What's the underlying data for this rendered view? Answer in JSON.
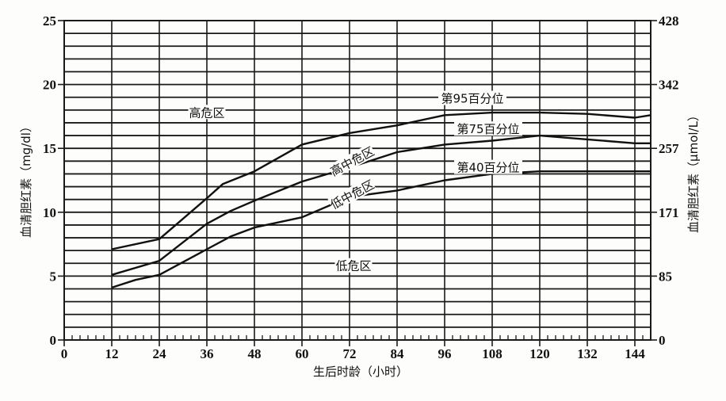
{
  "chart_data": {
    "type": "line",
    "title": "",
    "xlabel": "生后时龄（小时）",
    "ylabel": "血清胆红素（mg/dl）",
    "ylabel_right": "血清胆红素（μmol/L）",
    "xlim": [
      0,
      148
    ],
    "ylim": [
      0,
      25
    ],
    "x_ticks": [
      0,
      12,
      24,
      36,
      48,
      60,
      72,
      84,
      96,
      108,
      120,
      132,
      144
    ],
    "y_ticks": [
      0,
      5,
      10,
      15,
      20,
      25
    ],
    "y_ticks_right": [
      {
        "at": 0,
        "label": "0"
      },
      {
        "at": 5,
        "label": "85"
      },
      {
        "at": 10,
        "label": "171"
      },
      {
        "at": 15,
        "label": "257"
      },
      {
        "at": 20,
        "label": "342"
      },
      {
        "at": 25,
        "label": "428"
      }
    ],
    "grid": {
      "horizontal_step": 1,
      "vertical_step": 12,
      "minor_x_ticks_step": 2
    },
    "series": [
      {
        "name": "第95百分位",
        "x": [
          12,
          24,
          36,
          40,
          48,
          60,
          72,
          84,
          96,
          108,
          120,
          132,
          144,
          148
        ],
        "values": [
          7.1,
          7.9,
          11.1,
          12.2,
          13.2,
          15.3,
          16.2,
          16.8,
          17.6,
          17.8,
          17.8,
          17.7,
          17.4,
          17.6
        ]
      },
      {
        "name": "第75百分位",
        "x": [
          12,
          24,
          36,
          42,
          48,
          60,
          72,
          84,
          96,
          108,
          120,
          132,
          144,
          148
        ],
        "values": [
          5.1,
          6.2,
          9.1,
          10.1,
          10.9,
          12.4,
          13.5,
          14.7,
          15.3,
          15.6,
          16.0,
          15.7,
          15.4,
          15.4
        ]
      },
      {
        "name": "第40百分位",
        "x": [
          12,
          18,
          24,
          36,
          42,
          48,
          60,
          72,
          84,
          96,
          108,
          120,
          132,
          144,
          148
        ],
        "values": [
          4.1,
          4.7,
          5.1,
          7.1,
          8.1,
          8.8,
          9.6,
          11.2,
          11.7,
          12.5,
          13.0,
          13.2,
          13.2,
          13.2,
          13.2
        ]
      }
    ],
    "annotations": [
      {
        "text": "高危区",
        "x": 36,
        "y": 17.6,
        "rotate": 0
      },
      {
        "text": "高中危区",
        "x": 73,
        "y": 13.8,
        "rotate": -28
      },
      {
        "text": "低中危区",
        "x": 73,
        "y": 11.2,
        "rotate": -28
      },
      {
        "text": "低危区",
        "x": 73,
        "y": 5.6,
        "rotate": 0
      },
      {
        "text": "第95百分位",
        "x": 103,
        "y": 18.7,
        "rotate": 0
      },
      {
        "text": "第75百分位",
        "x": 107,
        "y": 16.3,
        "rotate": 0
      },
      {
        "text": "第40百分位",
        "x": 107,
        "y": 13.3,
        "rotate": 0
      }
    ]
  },
  "colors": {
    "line": "#111111",
    "grid": "#1a1a1a",
    "background": "#fdfdfb"
  }
}
